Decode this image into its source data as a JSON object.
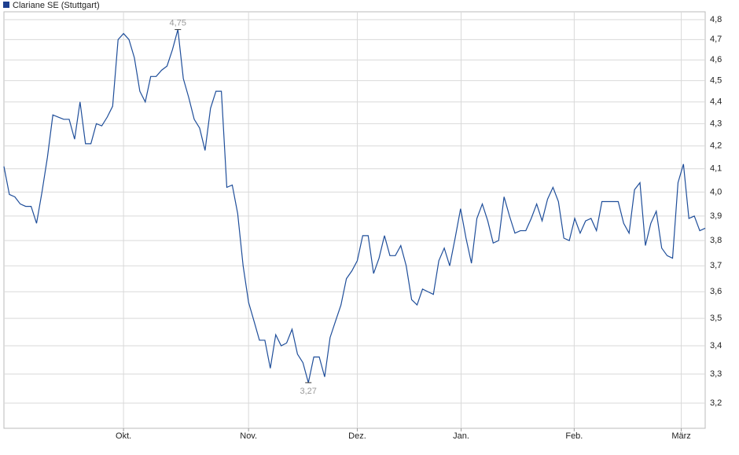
{
  "chart_data": {
    "type": "line",
    "series": [
      {
        "name": "Clariane SE (Stuttgart)",
        "color": "#1f4e9a",
        "values": [
          4.11,
          3.99,
          3.98,
          3.95,
          3.94,
          3.94,
          3.87,
          4.0,
          4.15,
          4.34,
          4.33,
          4.32,
          4.32,
          4.23,
          4.4,
          4.21,
          4.21,
          4.3,
          4.29,
          4.33,
          4.38,
          4.7,
          4.73,
          4.7,
          4.61,
          4.45,
          4.4,
          4.52,
          4.52,
          4.55,
          4.57,
          4.65,
          4.75,
          4.51,
          4.42,
          4.32,
          4.28,
          4.18,
          4.37,
          4.45,
          4.45,
          4.02,
          4.03,
          3.91,
          3.7,
          3.56,
          3.49,
          3.42,
          3.42,
          3.32,
          3.44,
          3.4,
          3.41,
          3.46,
          3.37,
          3.34,
          3.27,
          3.36,
          3.36,
          3.29,
          3.43,
          3.49,
          3.55,
          3.65,
          3.68,
          3.72,
          3.82,
          3.82,
          3.67,
          3.73,
          3.82,
          3.74,
          3.74,
          3.78,
          3.7,
          3.57,
          3.55,
          3.61,
          3.6,
          3.59,
          3.72,
          3.77,
          3.7,
          3.81,
          3.93,
          3.81,
          3.71,
          3.89,
          3.95,
          3.88,
          3.79,
          3.8,
          3.98,
          3.9,
          3.83,
          3.84,
          3.84,
          3.89,
          3.95,
          3.88,
          3.97,
          4.02,
          3.96,
          3.81,
          3.8,
          3.89,
          3.83,
          3.88,
          3.89,
          3.84,
          3.96,
          3.96,
          3.96,
          3.96,
          3.87,
          3.83,
          4.01,
          4.04,
          3.78,
          3.87,
          3.92,
          3.77,
          3.74,
          3.73,
          4.04,
          4.12,
          3.89,
          3.9,
          3.84,
          3.85
        ]
      }
    ],
    "legend_color": "#1d3f8f",
    "annotations": [
      {
        "label": "4,75",
        "value": 4.75
      },
      {
        "label": "3,27",
        "value": 3.27
      }
    ],
    "yscale": "log",
    "ylim": [
      3.116,
      4.84
    ],
    "yticks": [
      {
        "value": 3.2,
        "label": "3,2"
      },
      {
        "value": 3.3,
        "label": "3,3"
      },
      {
        "value": 3.4,
        "label": "3,4"
      },
      {
        "value": 3.5,
        "label": "3,5"
      },
      {
        "value": 3.6,
        "label": "3,6"
      },
      {
        "value": 3.7,
        "label": "3,7"
      },
      {
        "value": 3.8,
        "label": "3,8"
      },
      {
        "value": 3.9,
        "label": "3,9"
      },
      {
        "value": 4.0,
        "label": "4,0"
      },
      {
        "value": 4.1,
        "label": "4,1"
      },
      {
        "value": 4.2,
        "label": "4,2"
      },
      {
        "value": 4.3,
        "label": "4,3"
      },
      {
        "value": 4.4,
        "label": "4,4"
      },
      {
        "value": 4.5,
        "label": "4,5"
      },
      {
        "value": 4.6,
        "label": "4,6"
      },
      {
        "value": 4.7,
        "label": "4,7"
      },
      {
        "value": 4.8,
        "label": "4,8"
      }
    ],
    "xlim": [
      0,
      129
    ],
    "xticks": [
      {
        "value": 22,
        "label": "Okt."
      },
      {
        "value": 45,
        "label": "Nov."
      },
      {
        "value": 65,
        "label": "Dez."
      },
      {
        "value": 84.1,
        "label": "Jan."
      },
      {
        "value": 104.9,
        "label": "Feb."
      },
      {
        "value": 124.6,
        "label": "März"
      }
    ],
    "grid": true
  }
}
